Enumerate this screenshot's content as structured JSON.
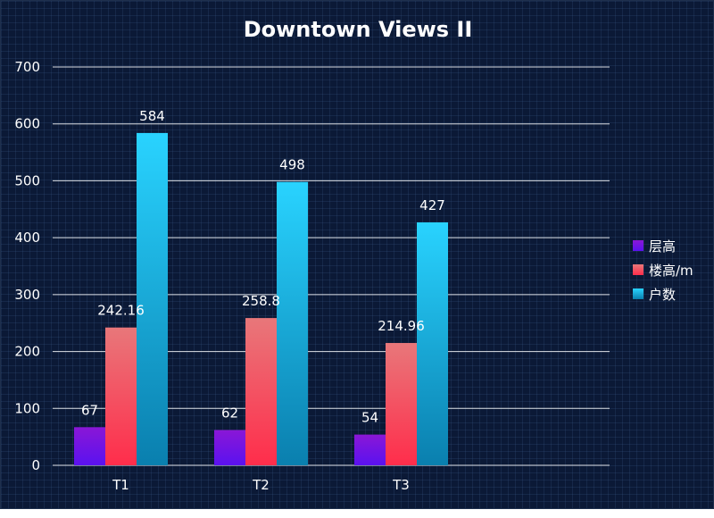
{
  "chart_data": {
    "type": "bar",
    "title": "Downtown Views II",
    "categories": [
      "T1",
      "T2",
      "T3"
    ],
    "series": [
      {
        "name": "层高",
        "values": [
          67,
          62,
          54
        ],
        "color_top": "#8a17d6",
        "color_bottom": "#5a12f0"
      },
      {
        "name": "楼高/m",
        "values": [
          242.16,
          258.8,
          214.96
        ],
        "color_top": "#e8777a",
        "color_bottom": "#ff2d4b"
      },
      {
        "name": "户数",
        "values": [
          584,
          498,
          427
        ],
        "color_top": "#29d3ff",
        "color_bottom": "#0a7fae"
      }
    ],
    "value_labels": [
      [
        "67",
        "62",
        "54"
      ],
      [
        "242.16",
        "258.8",
        "214.96"
      ],
      [
        "584",
        "498",
        "427"
      ]
    ],
    "y_ticks": [
      "0",
      "100",
      "200",
      "300",
      "400",
      "500",
      "600",
      "700"
    ],
    "ylim": [
      0,
      700
    ],
    "grid": true,
    "legend_position": "right",
    "background_color": "#0b1936",
    "gridline_color": "#ffffff"
  }
}
